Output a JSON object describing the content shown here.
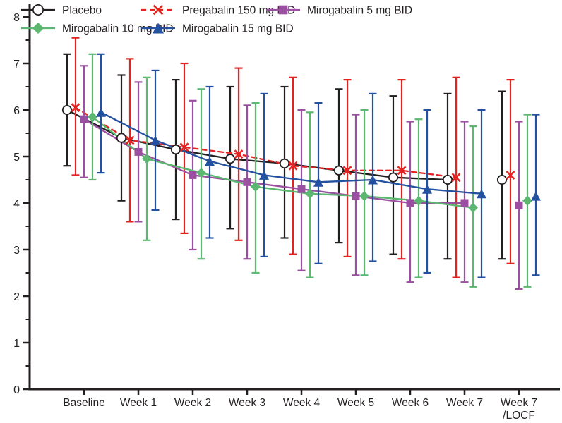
{
  "figure_title": "",
  "chart_data": {
    "type": "line",
    "title": "",
    "xlabel": "",
    "ylabel": "",
    "ylim": [
      0,
      8
    ],
    "y_major_ticks": [
      0,
      1,
      2,
      3,
      4,
      5,
      6,
      7,
      8
    ],
    "y_minor_step": 0.5,
    "grid": false,
    "legend_position": "top",
    "error_bars": "mean ± SD, vertical caps",
    "categories": [
      "Baseline",
      "Week 1",
      "Week 2",
      "Week 3",
      "Week 4",
      "Week 5",
      "Week 6",
      "Week 7",
      "Week 7 /LOCF"
    ],
    "x_tick_label_lines": [
      [
        "Baseline"
      ],
      [
        "Week 1"
      ],
      [
        "Week 2"
      ],
      [
        "Week 3"
      ],
      [
        "Week 4"
      ],
      [
        "Week 5"
      ],
      [
        "Week 6"
      ],
      [
        "Week 7"
      ],
      [
        "Week 7",
        "/LOCF"
      ]
    ],
    "last_point_disconnected": true,
    "series": [
      {
        "name": "Placebo",
        "slug": "placebo",
        "color": "#231f20",
        "marker": "open-circle",
        "line_style": "solid",
        "values": [
          6.0,
          5.4,
          5.15,
          4.95,
          4.85,
          4.7,
          4.55,
          4.5,
          4.5
        ],
        "err_high": [
          7.2,
          6.75,
          6.65,
          6.5,
          6.5,
          6.45,
          6.3,
          6.35,
          6.4
        ],
        "err_low": [
          4.8,
          4.05,
          3.65,
          3.45,
          3.25,
          3.15,
          2.9,
          2.8,
          2.8
        ]
      },
      {
        "name": "Pregabalin 150 mg BID",
        "slug": "pregabalin-150",
        "color": "#e32322",
        "marker": "x",
        "line_style": "dashed",
        "values": [
          6.05,
          5.35,
          5.2,
          5.05,
          4.8,
          4.7,
          4.7,
          4.55,
          4.6
        ],
        "err_high": [
          7.55,
          7.1,
          7.0,
          6.9,
          6.7,
          6.65,
          6.65,
          6.7,
          6.65
        ],
        "err_low": [
          4.6,
          3.6,
          3.35,
          3.2,
          2.9,
          2.85,
          2.8,
          2.4,
          2.7
        ]
      },
      {
        "name": "Mirogabalin 5 mg BID",
        "slug": "mirogabalin-5",
        "color": "#9b4fa0",
        "marker": "square",
        "line_style": "solid",
        "values": [
          5.8,
          5.1,
          4.6,
          4.45,
          4.3,
          4.15,
          4.0,
          4.0,
          3.95
        ],
        "err_high": [
          6.95,
          6.6,
          6.2,
          6.1,
          6.0,
          5.9,
          5.75,
          5.75,
          5.75
        ],
        "err_low": [
          4.55,
          3.6,
          3.0,
          2.8,
          2.55,
          2.45,
          2.3,
          2.3,
          2.15
        ]
      },
      {
        "name": "Mirogabalin 10 mg BID",
        "slug": "mirogabalin-10",
        "color": "#5cb870",
        "marker": "diamond",
        "line_style": "solid",
        "values": [
          5.85,
          4.95,
          4.65,
          4.35,
          4.2,
          4.15,
          4.05,
          3.9,
          4.05
        ],
        "err_high": [
          7.2,
          6.7,
          6.45,
          6.15,
          5.95,
          6.0,
          5.8,
          5.65,
          5.9
        ],
        "err_low": [
          4.5,
          3.2,
          2.8,
          2.5,
          2.4,
          2.45,
          2.4,
          2.2,
          2.2
        ]
      },
      {
        "name": "Mirogabalin 15 mg BID",
        "slug": "mirogabalin-15",
        "color": "#2351a0",
        "marker": "triangle",
        "line_style": "solid",
        "values": [
          5.95,
          5.35,
          4.9,
          4.6,
          4.45,
          4.5,
          4.3,
          4.2,
          4.15
        ],
        "err_high": [
          7.2,
          6.85,
          6.5,
          6.35,
          6.15,
          6.35,
          6.0,
          6.0,
          5.9
        ],
        "err_low": [
          4.65,
          3.85,
          3.25,
          2.85,
          2.7,
          2.75,
          2.5,
          2.4,
          2.45
        ]
      }
    ],
    "legend_rows": [
      [
        "placebo",
        "pregabalin-150",
        "mirogabalin-5"
      ],
      [
        "mirogabalin-10",
        "mirogabalin-15"
      ]
    ]
  }
}
